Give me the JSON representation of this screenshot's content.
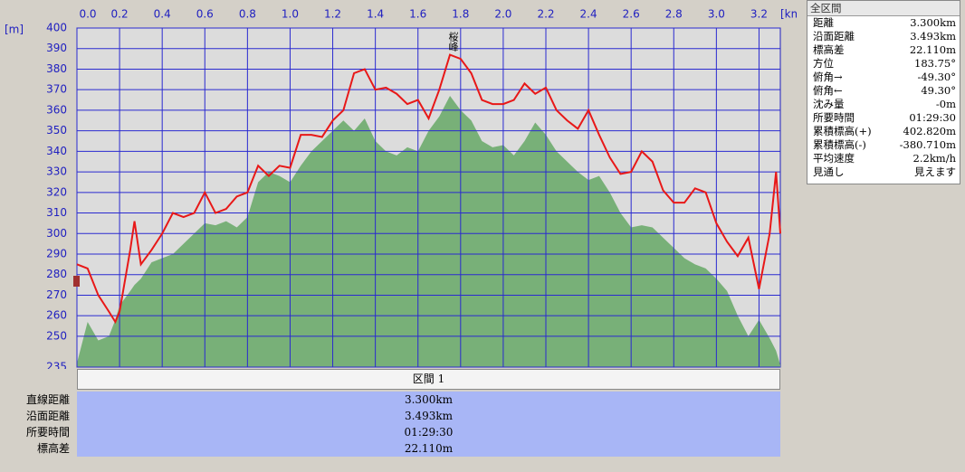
{
  "chart_data": {
    "type": "line-area",
    "x_unit": "[km]",
    "y_unit": "[m]",
    "annotations": [
      "桜峰"
    ],
    "x": [
      0,
      0.05,
      0.1,
      0.15,
      0.18,
      0.2,
      0.25,
      0.27,
      0.3,
      0.35,
      0.4,
      0.45,
      0.5,
      0.55,
      0.6,
      0.65,
      0.7,
      0.75,
      0.8,
      0.85,
      0.9,
      0.95,
      1,
      1.05,
      1.1,
      1.15,
      1.2,
      1.25,
      1.3,
      1.35,
      1.4,
      1.45,
      1.5,
      1.55,
      1.6,
      1.65,
      1.7,
      1.75,
      1.8,
      1.85,
      1.9,
      1.95,
      2,
      2.05,
      2.1,
      2.15,
      2.2,
      2.25,
      2.3,
      2.35,
      2.4,
      2.45,
      2.5,
      2.55,
      2.6,
      2.65,
      2.7,
      2.75,
      2.8,
      2.85,
      2.9,
      2.95,
      3,
      3.05,
      3.1,
      3.15,
      3.2,
      3.25,
      3.28,
      3.3
    ],
    "series": [
      {
        "color": "#e81818",
        "values": [
          285,
          283,
          270,
          262,
          257,
          262,
          292,
          306,
          285,
          292,
          300,
          310,
          308,
          310,
          320,
          310,
          312,
          318,
          320,
          333,
          328,
          333,
          332,
          348,
          348,
          347,
          355,
          360,
          378,
          380,
          370,
          371,
          368,
          363,
          365,
          356,
          370,
          387,
          385,
          378,
          365,
          363,
          363,
          365,
          373,
          368,
          371,
          360,
          355,
          351,
          360,
          348,
          337,
          329,
          330,
          340,
          335,
          321,
          315,
          315,
          322,
          320,
          305,
          296,
          289,
          298,
          273,
          300,
          330,
          300
        ]
      },
      {
        "color": "#78b078",
        "values": [
          237,
          257,
          248,
          250,
          258,
          265,
          272,
          275,
          278,
          286,
          288,
          290,
          295,
          300,
          305,
          304,
          306,
          303,
          308,
          325,
          330,
          328,
          325,
          333,
          340,
          345,
          350,
          355,
          350,
          356,
          345,
          340,
          338,
          342,
          340,
          350,
          357,
          367,
          360,
          355,
          345,
          342,
          343,
          338,
          345,
          354,
          348,
          340,
          335,
          330,
          326,
          328,
          320,
          310,
          303,
          304,
          303,
          298,
          293,
          288,
          285,
          283,
          278,
          272,
          260,
          250,
          258,
          249,
          243,
          236
        ]
      }
    ],
    "xlim": [
      0,
      3.3
    ],
    "ylim": [
      235,
      400
    ],
    "xticks": [
      {
        "value": 0,
        "label": "0.0"
      },
      0.2,
      0.4,
      0.6,
      0.8,
      {
        "value": 1,
        "label": "1.0"
      },
      1.2,
      1.4,
      1.6,
      1.8,
      {
        "value": 2,
        "label": "2.0"
      },
      2.2,
      2.4,
      2.6,
      2.8,
      {
        "value": 3,
        "label": "3.0"
      },
      3.2
    ],
    "yticks": [
      235,
      250,
      260,
      270,
      280,
      290,
      300,
      310,
      320,
      330,
      340,
      350,
      360,
      370,
      380,
      390,
      400
    ],
    "grid": true
  },
  "panel": {
    "title": "全区間",
    "rows": [
      [
        "距離",
        "3.300km"
      ],
      [
        "沿面距離",
        "3.493km"
      ],
      [
        "標高差",
        "22.110m"
      ],
      [
        "方位",
        "183.75°"
      ],
      [
        "俯角→",
        "-49.30°"
      ],
      [
        "俯角←",
        "49.30°"
      ],
      [
        "沈み量",
        "-0m"
      ],
      [
        "所要時間",
        "01:29:30"
      ],
      [
        "累積標高(+)",
        "402.820m"
      ],
      [
        "累積標高(-)",
        "-380.710m"
      ],
      [
        "平均速度",
        "2.2km/h"
      ],
      [
        "見通し",
        "見えます"
      ]
    ]
  },
  "section": {
    "title": "区間 1",
    "labels": [
      "直線距離",
      "沿面距離",
      "所要時間",
      "標高差"
    ],
    "values": [
      "3.300km",
      "3.493km",
      "01:29:30",
      "22.110m"
    ]
  }
}
